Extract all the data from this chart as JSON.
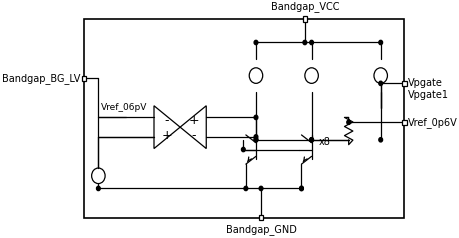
{
  "background_color": "#ffffff",
  "line_color": "#000000",
  "text_color": "#000000",
  "port_labels": {
    "BG_LV": "Bandgap_BG_LV",
    "VCC": "Bandgap_VCC",
    "GND": "Bandgap_GND",
    "Vpgate": "Vpgate",
    "Vpgate1": "Vpgate1",
    "Vref_0p6V": "Vref_0p6V"
  },
  "voltage_label": "Vref_06pV",
  "x8_label": "x8",
  "font_size": 7.0,
  "lw": 0.9
}
